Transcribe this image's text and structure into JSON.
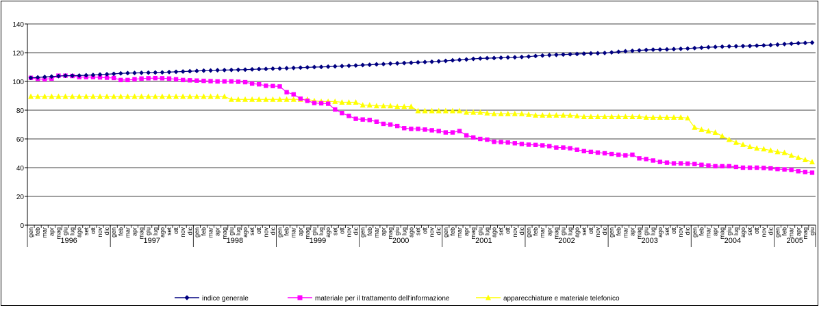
{
  "chart_data": {
    "type": "line",
    "ylim": [
      0,
      140
    ],
    "y_ticks": [
      "0",
      "20",
      "40",
      "60",
      "80",
      "100",
      "120",
      "140"
    ],
    "grid": "horizontal",
    "legend_position": "bottom",
    "month_labels": [
      "gen",
      "feb",
      "mar",
      "apr",
      "mag",
      "giu",
      "lug",
      "ago",
      "set",
      "ott",
      "nov",
      "dic"
    ],
    "years": [
      {
        "label": "1996",
        "months": 12
      },
      {
        "label": "1997",
        "months": 12
      },
      {
        "label": "1998",
        "months": 12
      },
      {
        "label": "1999",
        "months": 12
      },
      {
        "label": "2000",
        "months": 12
      },
      {
        "label": "2001",
        "months": 12
      },
      {
        "label": "2002",
        "months": 12
      },
      {
        "label": "2003",
        "months": 12
      },
      {
        "label": "2004",
        "months": 12
      },
      {
        "label": "2005",
        "months": 6
      }
    ],
    "series": [
      {
        "name": "indice generale",
        "color": "#000080",
        "marker": "diamond",
        "values": [
          102.5,
          102.8,
          103.1,
          103.4,
          103.7,
          104.0,
          104.0,
          104.1,
          104.3,
          104.5,
          104.8,
          105.0,
          105.3,
          105.6,
          105.8,
          105.9,
          106.0,
          106.1,
          106.2,
          106.3,
          106.5,
          106.7,
          106.9,
          107.1,
          107.3,
          107.5,
          107.6,
          107.8,
          107.9,
          108.0,
          108.1,
          108.2,
          108.4,
          108.6,
          108.7,
          108.9,
          109.0,
          109.2,
          109.4,
          109.6,
          109.8,
          110.0,
          110.1,
          110.3,
          110.5,
          110.7,
          110.9,
          111.1,
          111.4,
          111.6,
          111.9,
          112.1,
          112.4,
          112.6,
          112.8,
          113.0,
          113.3,
          113.5,
          113.7,
          114.0,
          114.3,
          114.7,
          115.0,
          115.3,
          115.7,
          116.0,
          116.2,
          116.3,
          116.5,
          116.7,
          116.8,
          117.0,
          117.3,
          117.7,
          118.0,
          118.3,
          118.5,
          118.7,
          118.9,
          119.1,
          119.3,
          119.5,
          119.6,
          119.8,
          120.2,
          120.6,
          121.0,
          121.3,
          121.6,
          121.9,
          122.1,
          122.2,
          122.3,
          122.5,
          122.7,
          122.9,
          123.2,
          123.5,
          123.8,
          124.0,
          124.2,
          124.4,
          124.5,
          124.6,
          124.7,
          124.9,
          125.1,
          125.3,
          125.6,
          126.0,
          126.3,
          126.6,
          126.8,
          127.0
        ]
      },
      {
        "name": "materiale per il trattamento dell'informazione",
        "color": "#ff00ff",
        "marker": "square",
        "values": [
          102.5,
          101.8,
          101.5,
          102.0,
          104.0,
          104.0,
          103.8,
          103.0,
          103.0,
          103.0,
          102.8,
          102.6,
          102.4,
          101.0,
          101.0,
          101.5,
          102.0,
          102.2,
          102.3,
          102.2,
          102.0,
          101.5,
          101.0,
          100.8,
          100.6,
          100.4,
          100.2,
          100.0,
          100.0,
          100.0,
          99.8,
          99.5,
          98.5,
          98.0,
          97.0,
          96.8,
          96.5,
          92.5,
          91.0,
          88.0,
          86.5,
          85.0,
          84.8,
          84.5,
          80.5,
          78.0,
          76.0,
          74.0,
          73.5,
          73.2,
          72.0,
          70.5,
          70.0,
          69.0,
          67.5,
          67.0,
          67.0,
          66.5,
          66.0,
          65.5,
          64.5,
          64.5,
          65.5,
          62.5,
          61.0,
          60.0,
          59.5,
          58.0,
          57.8,
          57.5,
          57.0,
          56.5,
          56.0,
          55.8,
          55.5,
          55.0,
          54.0,
          54.0,
          53.5,
          52.5,
          51.5,
          51.0,
          50.5,
          50.0,
          49.5,
          49.0,
          48.5,
          49.0,
          46.5,
          46.0,
          45.0,
          44.0,
          43.5,
          43.0,
          43.0,
          42.8,
          42.5,
          42.0,
          41.5,
          41.0,
          41.0,
          41.0,
          40.5,
          40.0,
          40.0,
          40.0,
          39.8,
          39.5,
          39.0,
          38.8,
          38.5,
          37.5,
          37.0,
          36.5
        ]
      },
      {
        "name": "apparecchiature e materiale telefonico",
        "color": "#ffff00",
        "marker": "triangle",
        "values": [
          89.5,
          89.5,
          89.5,
          89.5,
          89.5,
          89.5,
          89.5,
          89.5,
          89.5,
          89.5,
          89.5,
          89.5,
          89.5,
          89.5,
          89.5,
          89.5,
          89.5,
          89.5,
          89.5,
          89.5,
          89.5,
          89.5,
          89.5,
          89.5,
          89.5,
          89.5,
          89.5,
          89.5,
          89.5,
          87.5,
          87.5,
          87.5,
          87.5,
          87.5,
          87.5,
          87.5,
          87.5,
          87.5,
          87.5,
          87.5,
          87.5,
          86.5,
          86.0,
          86.0,
          86.0,
          85.5,
          85.5,
          85.5,
          83.5,
          83.5,
          83.0,
          83.0,
          83.0,
          82.5,
          82.5,
          82.5,
          79.5,
          79.5,
          79.5,
          79.5,
          79.5,
          79.5,
          79.5,
          78.5,
          78.5,
          78.5,
          78.0,
          77.5,
          77.5,
          77.5,
          77.5,
          77.5,
          77.0,
          76.5,
          76.5,
          76.5,
          76.5,
          76.5,
          76.5,
          76.0,
          75.5,
          75.5,
          75.5,
          75.5,
          75.5,
          75.5,
          75.5,
          75.5,
          75.5,
          75.0,
          75.0,
          75.0,
          75.0,
          75.0,
          75.0,
          74.5,
          68.0,
          66.5,
          65.5,
          64.5,
          62.0,
          59.5,
          57.5,
          56.0,
          54.5,
          53.5,
          53.0,
          52.0,
          51.0,
          50.5,
          48.5,
          47.0,
          45.5,
          44.0
        ]
      }
    ]
  }
}
